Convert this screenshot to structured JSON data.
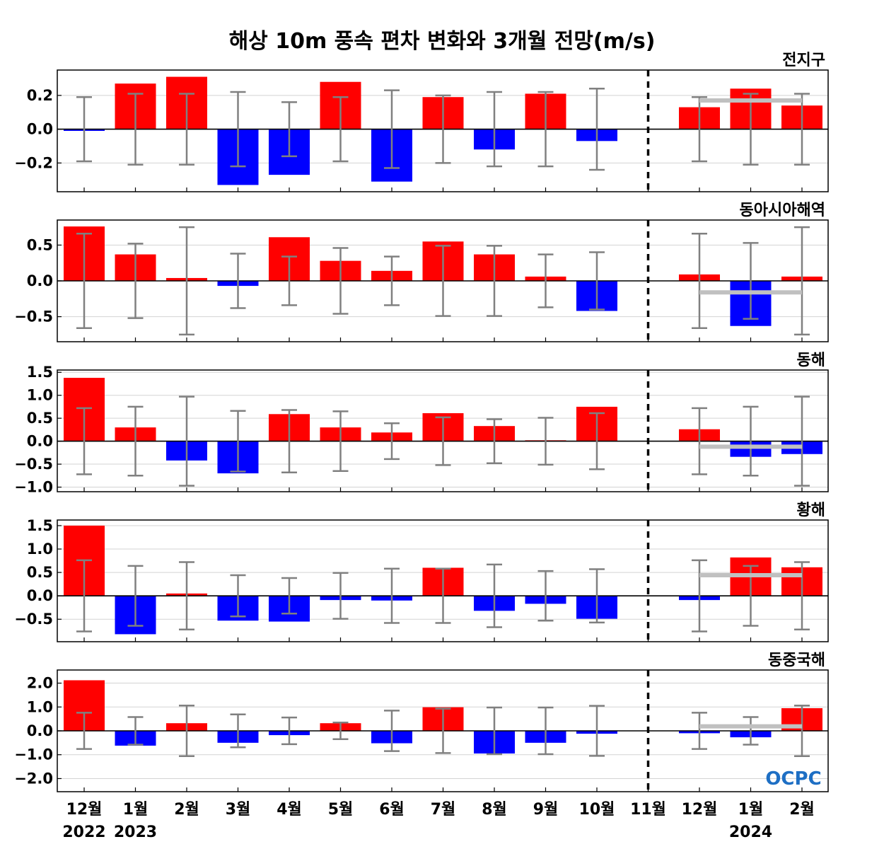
{
  "title": "해상 10m 풍속 편차 변화와 3개월 전망(m/s)",
  "logo_text": "OCPC",
  "x_labels": [
    "12월",
    "1월",
    "2월",
    "3월",
    "4월",
    "5월",
    "6월",
    "7월",
    "8월",
    "9월",
    "10월",
    "11월",
    "12월",
    "1월",
    "2월"
  ],
  "year_labels": [
    {
      "index": 0,
      "text": "2022"
    },
    {
      "index": 1,
      "text": "2023"
    },
    {
      "index": 13,
      "text": "2024"
    }
  ],
  "colors": {
    "positive": "#ff0000",
    "negative": "#0000ff",
    "error_bar": "#808080",
    "forecast_line": "#c0c0c0",
    "grid": "#d3d3d3"
  },
  "chart_data": [
    {
      "type": "bar",
      "label": "전지구",
      "categories": [
        "12월 2022",
        "1월 2023",
        "2월",
        "3월",
        "4월",
        "5월",
        "6월",
        "7월",
        "8월",
        "9월",
        "10월",
        "11월",
        "12월",
        "1월 2024",
        "2월"
      ],
      "values": [
        -0.01,
        0.27,
        0.31,
        -0.33,
        -0.27,
        0.28,
        -0.31,
        0.19,
        -0.12,
        0.21,
        -0.07,
        0,
        0.13,
        0.24,
        0.14
      ],
      "error_range": [
        [
          -0.19,
          0.19
        ],
        [
          -0.21,
          0.21
        ],
        [
          -0.21,
          0.21
        ],
        [
          -0.22,
          0.22
        ],
        [
          -0.16,
          0.16
        ],
        [
          -0.19,
          0.19
        ],
        [
          -0.23,
          0.23
        ],
        [
          -0.2,
          0.2
        ],
        [
          -0.22,
          0.22
        ],
        [
          -0.22,
          0.22
        ],
        [
          -0.24,
          0.24
        ],
        null,
        [
          -0.19,
          0.19
        ],
        [
          -0.21,
          0.21
        ],
        [
          -0.21,
          0.21
        ]
      ],
      "forecast_mean": 0.17,
      "ylim": [
        -0.37,
        0.35
      ],
      "yticks": [
        -0.2,
        0.0,
        0.2
      ],
      "ytick_labels": [
        "−0.2",
        "0.0",
        "0.2"
      ],
      "grid": true
    },
    {
      "type": "bar",
      "label": "동아시아해역",
      "categories": [
        "12월 2022",
        "1월 2023",
        "2월",
        "3월",
        "4월",
        "5월",
        "6월",
        "7월",
        "8월",
        "9월",
        "10월",
        "11월",
        "12월",
        "1월 2024",
        "2월"
      ],
      "values": [
        0.76,
        0.37,
        0.04,
        -0.07,
        0.61,
        0.28,
        0.14,
        0.55,
        0.37,
        0.06,
        -0.42,
        0,
        0.09,
        -0.63,
        0.06
      ],
      "error_range": [
        [
          -0.66,
          0.66
        ],
        [
          -0.52,
          0.52
        ],
        [
          -0.75,
          0.75
        ],
        [
          -0.38,
          0.38
        ],
        [
          -0.34,
          0.34
        ],
        [
          -0.46,
          0.46
        ],
        [
          -0.34,
          0.34
        ],
        [
          -0.49,
          0.49
        ],
        [
          -0.49,
          0.49
        ],
        [
          -0.37,
          0.37
        ],
        [
          -0.4,
          0.4
        ],
        null,
        [
          -0.66,
          0.66
        ],
        [
          -0.53,
          0.53
        ],
        [
          -0.75,
          0.75
        ]
      ],
      "forecast_mean": -0.16,
      "ylim": [
        -0.85,
        0.85
      ],
      "yticks": [
        -0.5,
        0.0,
        0.5
      ],
      "ytick_labels": [
        "−0.5",
        "0.0",
        "0.5"
      ],
      "grid": true
    },
    {
      "type": "bar",
      "label": "동해",
      "categories": [
        "12월 2022",
        "1월 2023",
        "2월",
        "3월",
        "4월",
        "5월",
        "6월",
        "7월",
        "8월",
        "9월",
        "10월",
        "11월",
        "12월",
        "1월 2024",
        "2월"
      ],
      "values": [
        1.38,
        0.3,
        -0.42,
        -0.7,
        0.59,
        0.3,
        0.19,
        0.61,
        0.33,
        0.02,
        0.75,
        0,
        0.26,
        -0.34,
        -0.28
      ],
      "error_range": [
        [
          -0.72,
          0.72
        ],
        [
          -0.75,
          0.75
        ],
        [
          -0.97,
          0.97
        ],
        [
          -0.66,
          0.66
        ],
        [
          -0.68,
          0.68
        ],
        [
          -0.65,
          0.65
        ],
        [
          -0.39,
          0.39
        ],
        [
          -0.52,
          0.52
        ],
        [
          -0.48,
          0.48
        ],
        [
          -0.51,
          0.51
        ],
        [
          -0.61,
          0.61
        ],
        null,
        [
          -0.72,
          0.72
        ],
        [
          -0.75,
          0.75
        ],
        [
          -0.97,
          0.97
        ]
      ],
      "forecast_mean": -0.12,
      "ylim": [
        -1.1,
        1.55
      ],
      "yticks": [
        -1.0,
        -0.5,
        0.0,
        0.5,
        1.0,
        1.5
      ],
      "ytick_labels": [
        "−1.0",
        "−0.5",
        "0.0",
        "0.5",
        "1.0",
        "1.5"
      ],
      "grid": true
    },
    {
      "type": "bar",
      "label": "황해",
      "categories": [
        "12월 2022",
        "1월 2023",
        "2월",
        "3월",
        "4월",
        "5월",
        "6월",
        "7월",
        "8월",
        "9월",
        "10월",
        "11월",
        "12월",
        "1월 2024",
        "2월"
      ],
      "values": [
        1.5,
        -0.82,
        0.05,
        -0.53,
        -0.55,
        -0.09,
        -0.1,
        0.6,
        -0.32,
        -0.17,
        -0.49,
        0,
        -0.09,
        0.82,
        0.61
      ],
      "error_range": [
        [
          -0.76,
          0.76
        ],
        [
          -0.64,
          0.64
        ],
        [
          -0.72,
          0.72
        ],
        [
          -0.44,
          0.44
        ],
        [
          -0.38,
          0.38
        ],
        [
          -0.49,
          0.49
        ],
        [
          -0.58,
          0.58
        ],
        [
          -0.58,
          0.58
        ],
        [
          -0.67,
          0.67
        ],
        [
          -0.53,
          0.53
        ],
        [
          -0.57,
          0.57
        ],
        null,
        [
          -0.76,
          0.76
        ],
        [
          -0.64,
          0.64
        ],
        [
          -0.72,
          0.72
        ]
      ],
      "forecast_mean": 0.44,
      "ylim": [
        -0.98,
        1.62
      ],
      "yticks": [
        -0.5,
        0.0,
        0.5,
        1.0,
        1.5
      ],
      "ytick_labels": [
        "−0.5",
        "0.0",
        "0.5",
        "1.0",
        "1.5"
      ],
      "grid": true
    },
    {
      "type": "bar",
      "label": "동중국해",
      "categories": [
        "12월 2022",
        "1월 2023",
        "2월",
        "3월",
        "4월",
        "5월",
        "6월",
        "7월",
        "8월",
        "9월",
        "10월",
        "11월",
        "12월",
        "1월 2024",
        "2월"
      ],
      "values": [
        2.12,
        -0.62,
        0.32,
        -0.5,
        -0.18,
        0.32,
        -0.52,
        0.99,
        -0.95,
        -0.5,
        -0.12,
        0,
        -0.1,
        -0.27,
        0.95
      ],
      "error_range": [
        [
          -0.76,
          0.76
        ],
        [
          -0.58,
          0.58
        ],
        [
          -1.06,
          1.06
        ],
        [
          -0.69,
          0.69
        ],
        [
          -0.56,
          0.56
        ],
        [
          -0.35,
          0.35
        ],
        [
          -0.85,
          0.85
        ],
        [
          -0.93,
          0.93
        ],
        [
          -0.98,
          0.98
        ],
        [
          -0.98,
          0.98
        ],
        [
          -1.05,
          1.05
        ],
        null,
        [
          -0.76,
          0.76
        ],
        [
          -0.58,
          0.58
        ],
        [
          -1.06,
          1.06
        ]
      ],
      "forecast_mean": 0.19,
      "ylim": [
        -2.55,
        2.55
      ],
      "yticks": [
        -2.0,
        -1.0,
        0.0,
        1.0,
        2.0
      ],
      "ytick_labels": [
        "−2.0",
        "−1.0",
        "0.0",
        "1.0",
        "2.0"
      ],
      "grid": true
    }
  ]
}
